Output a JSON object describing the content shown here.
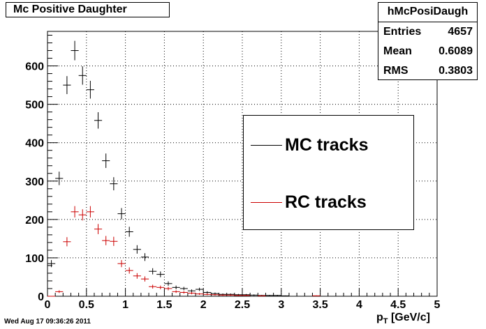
{
  "title": "Mc Positive Daughter",
  "stats": {
    "name": "hMcPosiDaugh",
    "rows": [
      {
        "label": "Entries",
        "value": "4657"
      },
      {
        "label": "Mean",
        "value": "0.6089"
      },
      {
        "label": "RMS",
        "value": "0.3803"
      }
    ]
  },
  "legend": {
    "entries": [
      {
        "label": "MC tracks",
        "color": "#000000"
      },
      {
        "label": "RC tracks",
        "color": "#cc0000"
      }
    ]
  },
  "timestamp": "Wed Aug 17 09:36:26 2011",
  "xaxis_label": {
    "main": "p",
    "sub": "T",
    "unit": " [GeV/c]"
  },
  "chart_data": {
    "type": "scatter",
    "title": "Mc Positive Daughter",
    "xlabel": "p_T [GeV/c]",
    "ylabel": "",
    "xlim": [
      0,
      5
    ],
    "ylim": [
      0,
      690
    ],
    "grid": true,
    "legend_position": "center-right",
    "bin_width": 0.1,
    "x_ticks": [
      "0",
      "0.5",
      "1",
      "1.5",
      "2",
      "2.5",
      "3",
      "3.5",
      "4",
      "4.5",
      "5"
    ],
    "y_ticks": [
      "0",
      "100",
      "200",
      "300",
      "400",
      "500",
      "600"
    ],
    "y_tick_values": [
      0,
      100,
      200,
      300,
      400,
      500,
      600
    ],
    "series": [
      {
        "name": "MC tracks",
        "color": "#000000",
        "x": [
          0.05,
          0.15,
          0.25,
          0.35,
          0.45,
          0.55,
          0.65,
          0.75,
          0.85,
          0.95,
          1.05,
          1.15,
          1.25,
          1.35,
          1.45,
          1.55,
          1.65,
          1.75,
          1.85,
          1.95,
          2.05,
          2.15,
          2.25,
          2.35,
          2.45,
          2.55,
          2.65,
          2.75,
          2.85,
          2.95,
          3.05,
          3.45
        ],
        "y": [
          85,
          307,
          550,
          640,
          575,
          538,
          458,
          353,
          293,
          215,
          168,
          122,
          102,
          65,
          57,
          33,
          23,
          20,
          14,
          18,
          10,
          7,
          5,
          5,
          4,
          4,
          3,
          2,
          2,
          2,
          1,
          1
        ]
      },
      {
        "name": "RC tracks",
        "color": "#cc0000",
        "x": [
          0.05,
          0.15,
          0.25,
          0.35,
          0.45,
          0.55,
          0.65,
          0.75,
          0.85,
          0.95,
          1.05,
          1.15,
          1.25,
          1.35,
          1.45,
          1.55,
          1.65,
          1.75,
          1.85,
          1.95,
          2.05,
          2.15,
          2.25,
          2.35,
          2.45,
          2.55,
          2.75,
          3.45
        ],
        "y": [
          0,
          12,
          142,
          220,
          212,
          220,
          175,
          145,
          143,
          85,
          67,
          53,
          45,
          25,
          23,
          20,
          12,
          10,
          8,
          6,
          5,
          4,
          3,
          3,
          2,
          2,
          1,
          1
        ]
      }
    ]
  }
}
